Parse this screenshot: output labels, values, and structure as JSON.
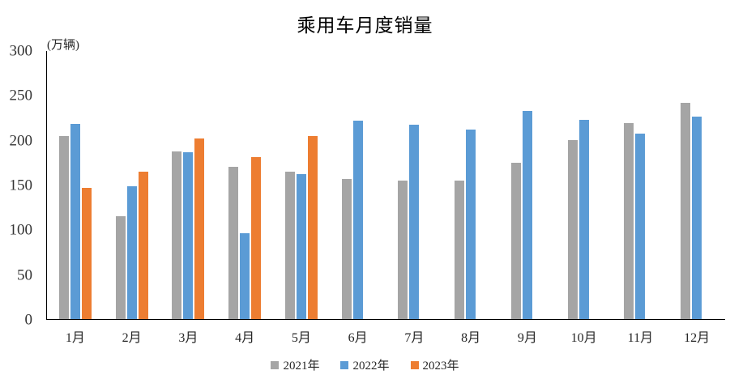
{
  "title": "乘用车月度销量",
  "unit_label": "(万辆)",
  "chart_data": {
    "type": "bar",
    "title": "乘用车月度销量",
    "ylabel": "(万辆)",
    "xlabel": "",
    "ylim": [
      0,
      300
    ],
    "yticks": [
      0,
      50,
      100,
      150,
      200,
      250,
      300
    ],
    "grid": false,
    "legend_position": "bottom",
    "categories": [
      "1月",
      "2月",
      "3月",
      "4月",
      "5月",
      "6月",
      "7月",
      "8月",
      "9月",
      "10月",
      "11月",
      "12月"
    ],
    "series": [
      {
        "name": "2021年",
        "color": "#A5A5A5",
        "values": [
          204.5,
          115.5,
          187.4,
          170.4,
          164.6,
          156.9,
          155.1,
          155.2,
          175.1,
          200.7,
          219.2,
          242.2
        ]
      },
      {
        "name": "2022年",
        "color": "#5B9BD5",
        "values": [
          218.6,
          148.7,
          186.4,
          96.5,
          162.3,
          222.2,
          217.4,
          212.5,
          233.2,
          223.1,
          207.5,
          226.3
        ]
      },
      {
        "name": "2023年",
        "color": "#ED7D31",
        "values": [
          146.9,
          165.3,
          201.7,
          181.1,
          205.1,
          null,
          null,
          null,
          null,
          null,
          null,
          null
        ]
      }
    ]
  }
}
